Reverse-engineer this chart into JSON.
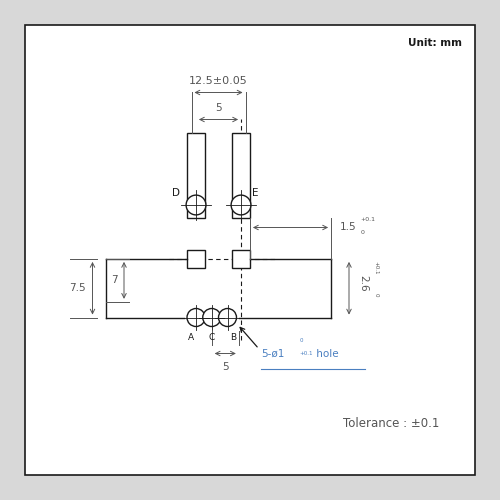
{
  "unit_label": "Unit: mm",
  "tolerance_label": "Tolerance : ±0.1",
  "dim_12p5": "12.5±0.05",
  "dim_5_top": "5",
  "dim_5_bot": "5",
  "dim_7": "7",
  "dim_7p5": "7.5",
  "dim_1p5": "1.5",
  "dim_2p6": "2.6",
  "label_D": "D",
  "label_E": "E",
  "label_A": "A",
  "label_C": "C",
  "label_B": "B",
  "bg_color": "#d8d8d8",
  "panel_color": "#ffffff",
  "line_color": "#1a1a1a",
  "dim_color": "#555555",
  "blue_color": "#4a7fc0",
  "tol_sup": "+0.1",
  "tol_sub": "0"
}
